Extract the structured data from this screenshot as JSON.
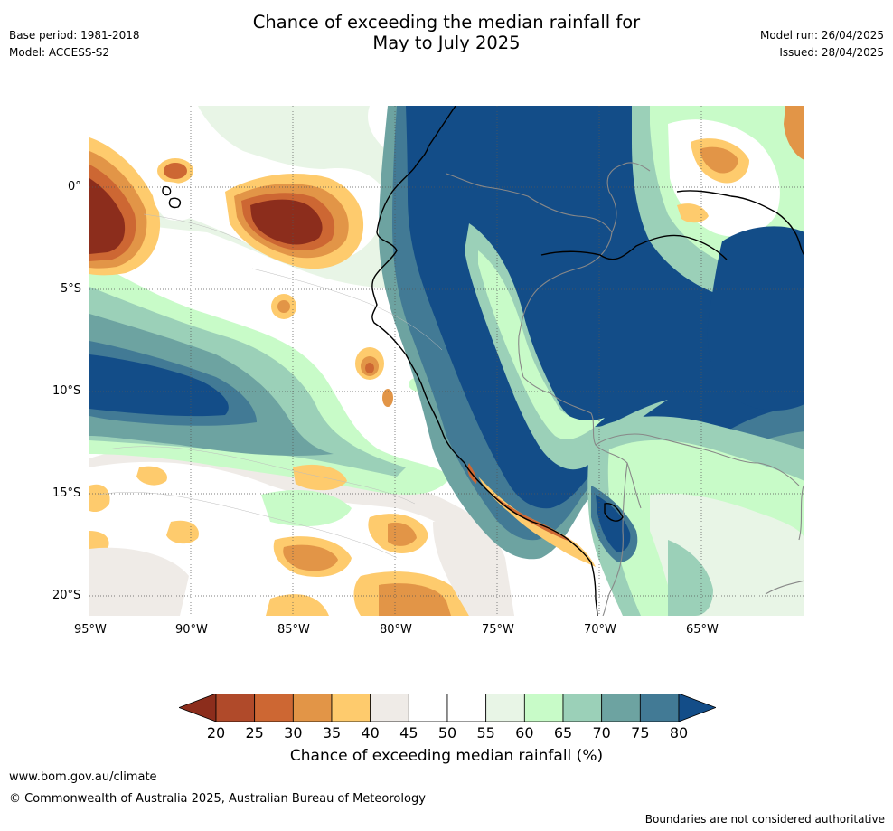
{
  "header": {
    "title_line1": "Chance of exceeding the median rainfall for",
    "title_line2": "May to July 2025",
    "base_period": "Base period: 1981-2018",
    "model": "Model: ACCESS-S2",
    "model_run": "Model run: 26/04/2025",
    "issued": "Issued: 28/04/2025"
  },
  "axes": {
    "lat_labels": [
      "0°",
      "5°S",
      "10°S",
      "15°S",
      "20°S"
    ],
    "lon_labels": [
      "95°W",
      "90°W",
      "85°W",
      "80°W",
      "75°W",
      "70°W",
      "65°W"
    ]
  },
  "legend": {
    "ticks": [
      "20",
      "25",
      "30",
      "35",
      "40",
      "45",
      "50",
      "55",
      "60",
      "65",
      "70",
      "75",
      "80"
    ],
    "label": "Chance of exceeding median rainfall (%)",
    "colors": [
      "#8c2d1c",
      "#b04a2a",
      "#cd6733",
      "#e29547",
      "#fecb6d",
      "#efebe7",
      "#ffffff",
      "#ffffff",
      "#e8f5e6",
      "#c8fbc8",
      "#9bd0b8",
      "#6da3a1",
      "#427a95",
      "#134d88"
    ]
  },
  "map_legend_colors": {
    "land_boundary": "#888888",
    "coastline": "#000000"
  },
  "footer": {
    "website": "www.bom.gov.au/climate",
    "copyright": "© Commonwealth of Australia 2025, Australian Bureau of Meteorology",
    "disclaimer": "Boundaries are not considered authoritative"
  }
}
